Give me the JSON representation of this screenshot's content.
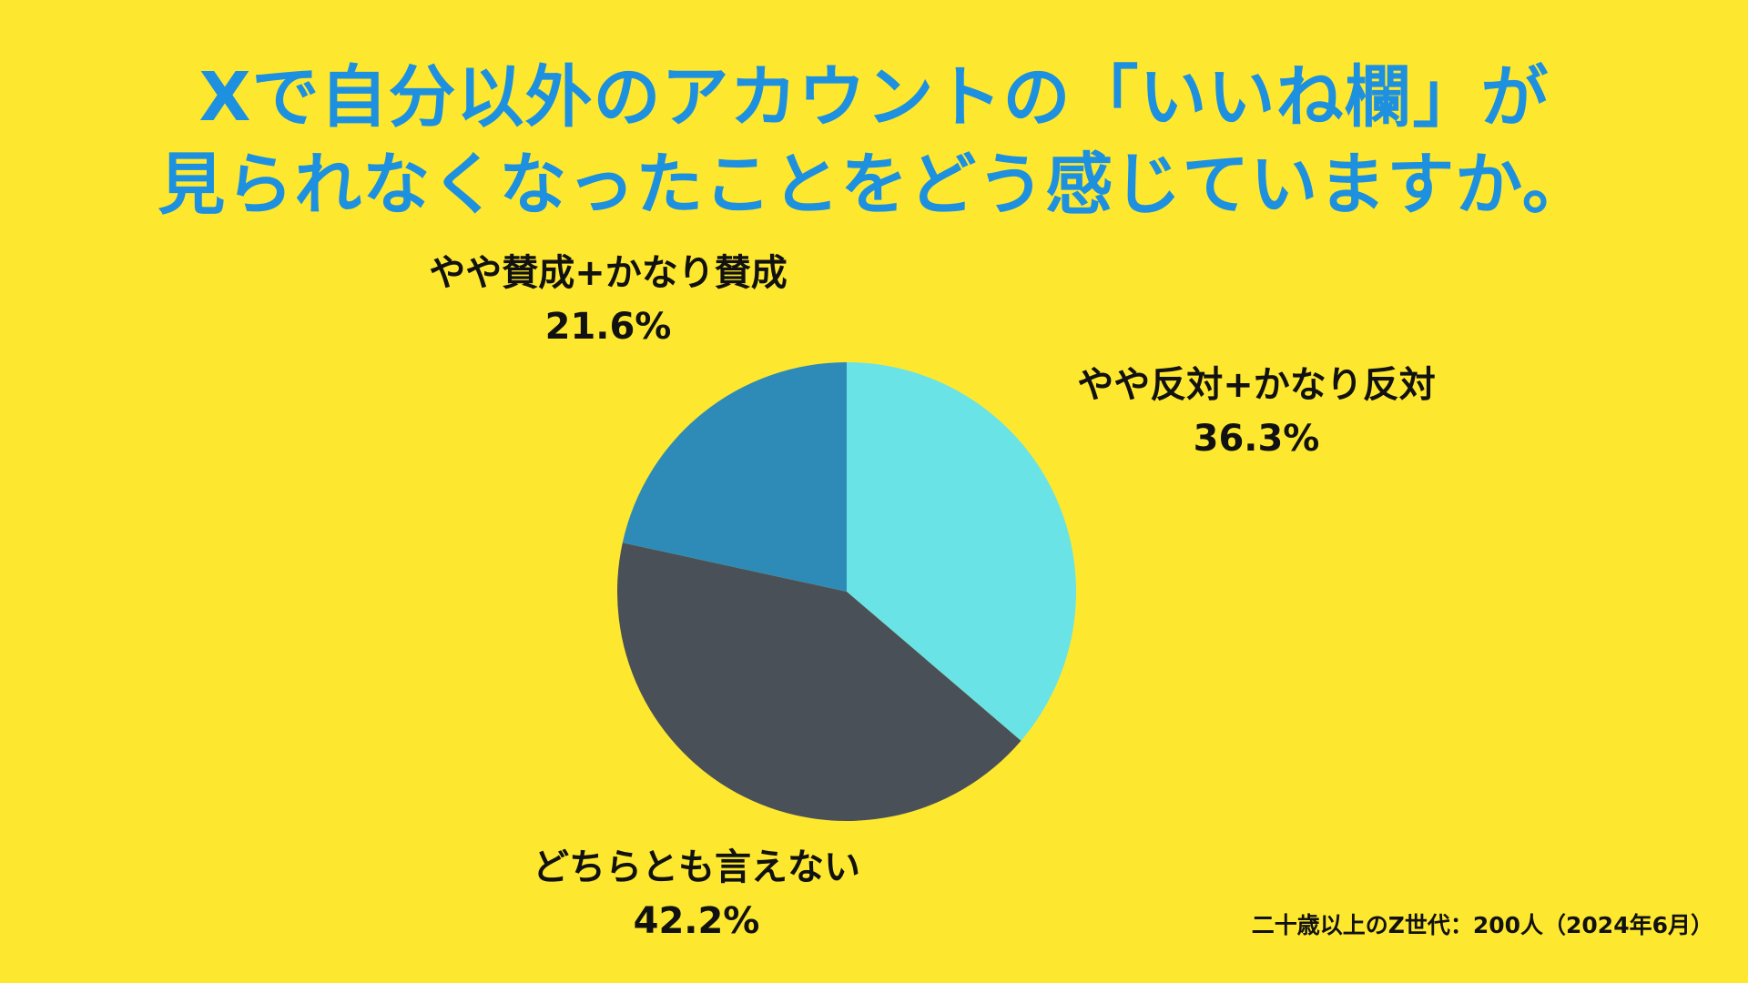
{
  "title_line1": "Xで自分以外のアカウントの「いいね欄」が",
  "title_line2": "見られなくなったことをどう感じていますか。",
  "source": "二十歳以上のZ世代：200人（2024年6月）",
  "colors": {
    "background": "#FDE82F",
    "title": "#1E90E0",
    "text": "#111111"
  },
  "chart_data": {
    "type": "pie",
    "title": "Xで自分以外のアカウントの「いいね欄」が見られなくなったことをどう感じていますか。",
    "slices": [
      {
        "label": "やや反対+かなり反対",
        "value": 36.3,
        "display": "36.3%",
        "color": "#6AE3E6"
      },
      {
        "label": "どちらとも言えない",
        "value": 42.2,
        "display": "42.2%",
        "color": "#4A5058"
      },
      {
        "label": "やや賛成+かなり賛成",
        "value": 21.6,
        "display": "21.6%",
        "color": "#2E8BB8"
      }
    ]
  }
}
